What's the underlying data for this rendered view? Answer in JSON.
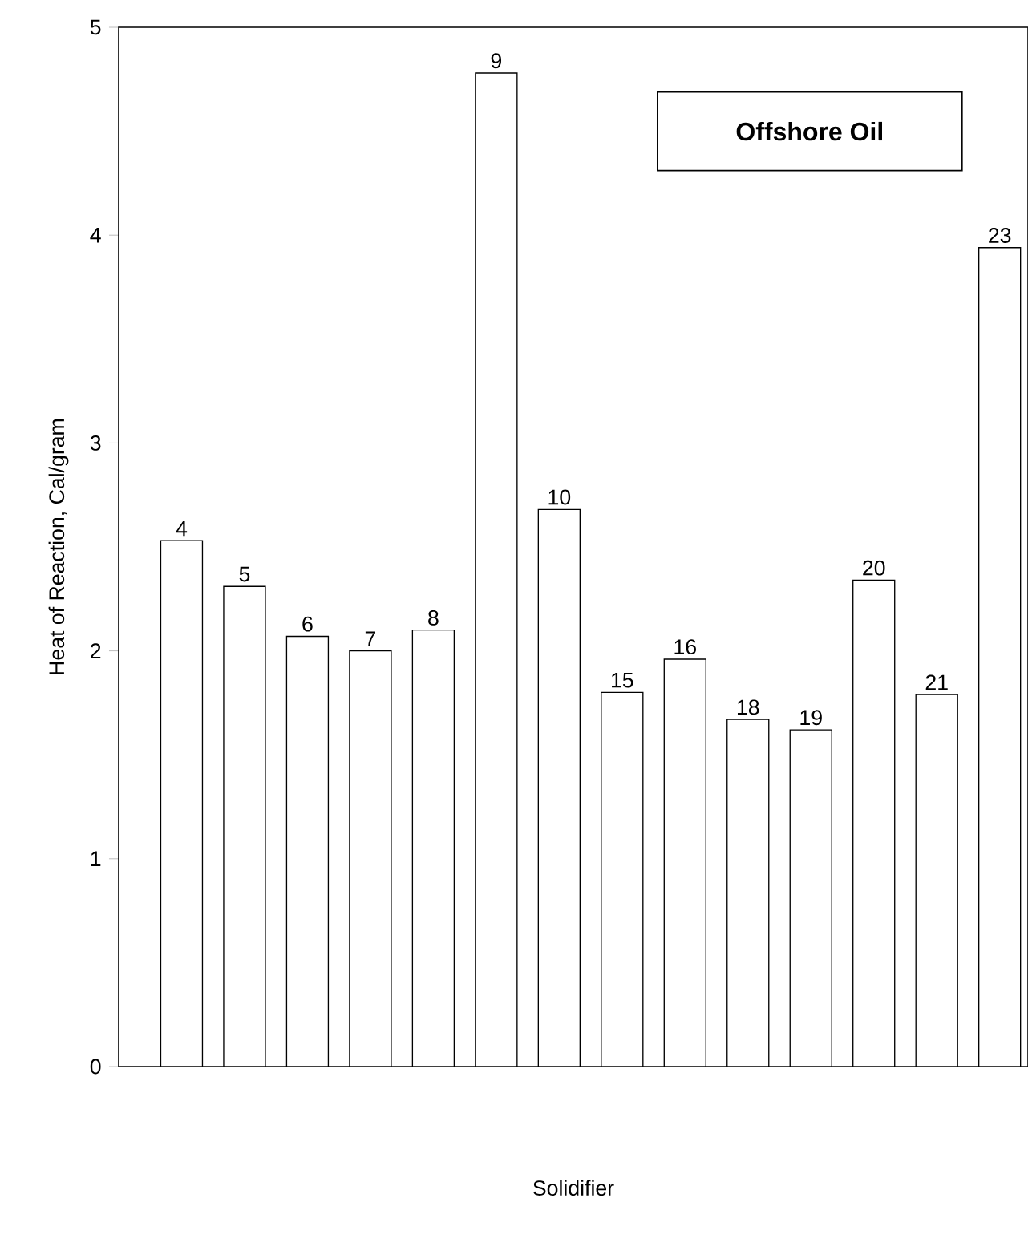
{
  "chart_data": {
    "type": "bar",
    "title": "Offshore Oil",
    "xlabel": "Solidifier",
    "ylabel": "Heat of Reaction, Cal/gram",
    "categories": [
      "4",
      "5",
      "6",
      "7",
      "8",
      "9",
      "10",
      "15",
      "16",
      "18",
      "19",
      "20",
      "21",
      "23"
    ],
    "values": [
      2.53,
      2.31,
      2.07,
      2.0,
      2.1,
      4.78,
      2.68,
      1.8,
      1.96,
      1.67,
      1.62,
      2.34,
      1.79,
      3.94
    ],
    "color": "#ffffff",
    "ylim": [
      0,
      5
    ],
    "yticks": [
      0,
      1,
      2,
      3,
      4,
      5
    ],
    "grid": false
  }
}
